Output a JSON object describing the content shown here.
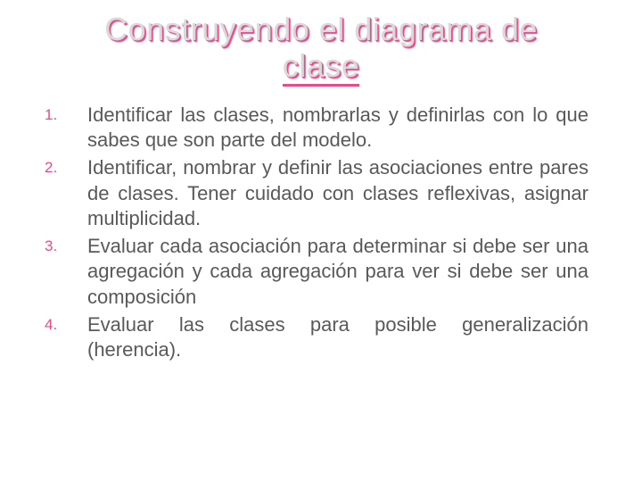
{
  "background_color": "#ffffff",
  "title": {
    "line1": "Construyendo el diagrama de",
    "line2": "clase",
    "color": "#d9d9d9",
    "shadow_color": "#e94b8a",
    "underline_color": "#e94b8a",
    "fontsize": 36
  },
  "body": {
    "text_color": "#595959",
    "number_color": "#e94b8a",
    "fontsize_text": 22,
    "fontsize_number": 17,
    "items": [
      {
        "num": "1.",
        "text": "Identificar las clases, nombrarlas y definirlas con lo que sabes que son parte del modelo."
      },
      {
        "num": "2.",
        "text": "Identificar, nombrar y definir las asociaciones entre pares de clases.  Tener cuidado con clases reflexivas, asignar multiplicidad."
      },
      {
        "num": "3.",
        "text": "Evaluar cada asociación para determinar si debe ser una agregación y cada agregación para ver si debe ser una composición"
      },
      {
        "num": "4.",
        "text": "Evaluar las clases para posible generalización (herencia)."
      }
    ]
  }
}
